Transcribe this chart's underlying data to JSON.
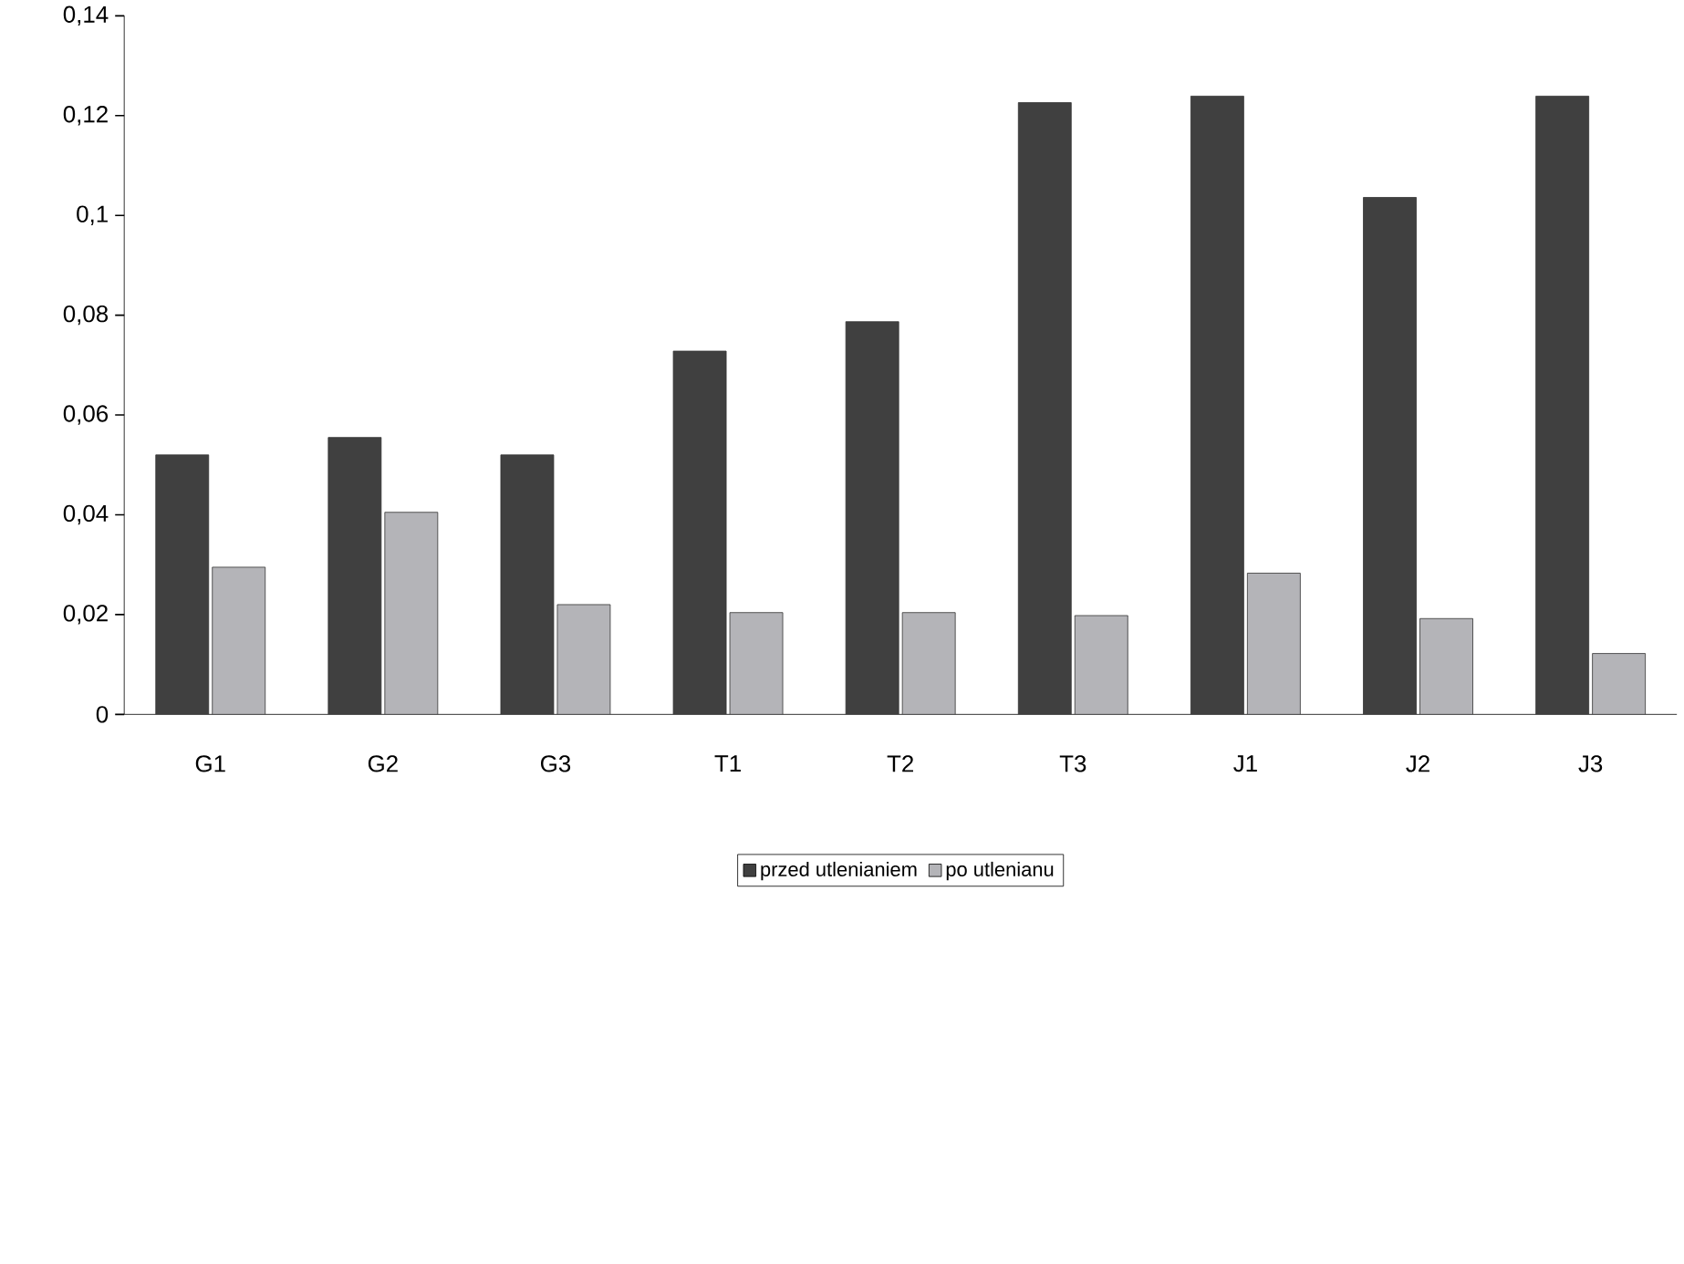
{
  "chart_data": {
    "type": "bar",
    "categories": [
      "G1",
      "G2",
      "G3",
      "T1",
      "T2",
      "T3",
      "J1",
      "J2",
      "J3"
    ],
    "series": [
      {
        "name": "przed utlenianiem",
        "color": "#404040",
        "values": [
          0.052,
          0.0555,
          0.052,
          0.0728,
          0.0787,
          0.1226,
          0.1239,
          0.1036,
          0.1239
        ]
      },
      {
        "name": "po utlenianu",
        "color": "#b4b4b8",
        "values": [
          0.0295,
          0.0405,
          0.022,
          0.0204,
          0.0204,
          0.0198,
          0.0283,
          0.0192,
          0.0122
        ]
      }
    ],
    "ylim": [
      0,
      0.14
    ],
    "yticks": [
      {
        "value": 0,
        "label": "0"
      },
      {
        "value": 0.02,
        "label": "0,02"
      },
      {
        "value": 0.04,
        "label": "0,04"
      },
      {
        "value": 0.06,
        "label": "0,06"
      },
      {
        "value": 0.08,
        "label": "0,08"
      },
      {
        "value": 0.1,
        "label": "0,1"
      },
      {
        "value": 0.12,
        "label": "0,12"
      },
      {
        "value": 0.14,
        "label": "0,14"
      }
    ],
    "grid": false,
    "legend": "bottom"
  }
}
